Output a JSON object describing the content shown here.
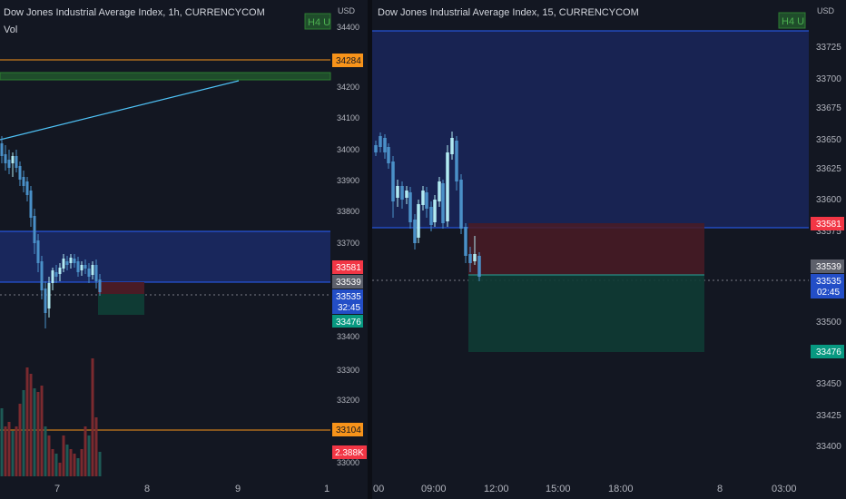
{
  "left_chart": {
    "title": "Dow Jones Industrial Average Index, 1h, CURRENCYCOM",
    "sub_label": "Vol",
    "badge": "H4 U",
    "currency": "USD",
    "y_ticks": [
      "34400",
      "34200",
      "34100",
      "34000",
      "33900",
      "33800",
      "33700",
      "33400",
      "33300",
      "33200",
      "33000"
    ],
    "x_ticks": [
      "7",
      "8",
      "9",
      "1"
    ],
    "price_tags": {
      "orange_top": "34284",
      "red": "33581",
      "grey": "33539",
      "blue_price": "33535",
      "blue_timer": "32:45",
      "green": "33476",
      "orange_bottom": "33104",
      "volume": "2.388K"
    }
  },
  "right_chart": {
    "title": "Dow Jones Industrial Average Index, 15, CURRENCYCOM",
    "badge": "H4 U",
    "currency": "USD",
    "y_ticks": [
      "33725",
      "33700",
      "33675",
      "33650",
      "33625",
      "33600",
      "33575",
      "33500",
      "33450",
      "33425",
      "33400"
    ],
    "x_ticks": [
      "00",
      "09:00",
      "12:00",
      "15:00",
      "18:00",
      "8",
      "03:00"
    ],
    "price_tags": {
      "red": "33581",
      "grey": "33539",
      "blue_price": "33535",
      "blue_timer": "02:45",
      "green": "33476"
    }
  },
  "colors": {
    "background": "#131722",
    "bull": "#b2ebf2",
    "bear": "#4a90c8",
    "orange": "#f7931a",
    "red_tag": "#f23645",
    "green_tag": "#089981",
    "blue_tag": "#2962ff",
    "zone_blue": "#1b2a66",
    "zone_red": "#4a1b25",
    "zone_green": "#0f3b34"
  }
}
